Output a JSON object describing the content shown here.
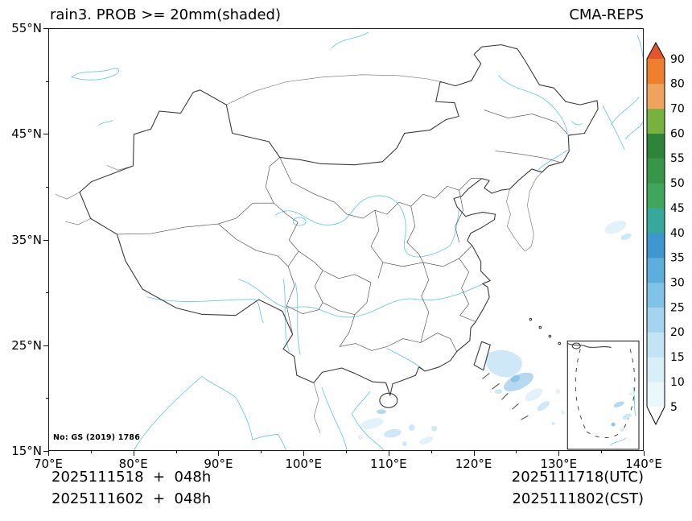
{
  "header": {
    "title": "rain3. PROB >= 20mm(shaded)",
    "model": "CMA-REPS"
  },
  "axes": {
    "x_ticks": [
      "70°E",
      "80°E",
      "90°E",
      "100°E",
      "110°E",
      "120°E",
      "130°E",
      "140°E"
    ],
    "y_ticks": [
      "55°N",
      "45°N",
      "35°N",
      "25°N",
      "15°N"
    ]
  },
  "map": {
    "license": "No: GS (2019) 1786",
    "colors": {
      "border": "#3c3c3c",
      "water": "#6ecde2",
      "frame": "#1a1a1a",
      "shade_levels": [
        "#e2f1fa",
        "#cfe8f7",
        "#b3daf1",
        "#8ec6ea"
      ]
    }
  },
  "footer": {
    "init_utc": "2025111518  +  048h",
    "init_cst": "2025111602  +  048h",
    "valid_utc": "2025111718(UTC)",
    "valid_cst": "2025111802(CST)"
  },
  "colorbar": {
    "levels": [
      5,
      10,
      15,
      20,
      25,
      30,
      35,
      40,
      45,
      50,
      55,
      60,
      70,
      80,
      90
    ],
    "segment_colors": [
      "#eaf7fb",
      "#d9eff8",
      "#c2e4f4",
      "#a3d5ee",
      "#7fc3e6",
      "#5caedc",
      "#3f97cf",
      "#37a89c",
      "#3fa65c",
      "#389648",
      "#2e8539",
      "#77b13e",
      "#f0a35c",
      "#ee7f2e"
    ],
    "under_color": "#ffffff",
    "over_color": "#e2562a"
  },
  "chart_data": {
    "type": "heatmap",
    "title": "rain3. PROB >= 20mm(shaded)",
    "model": "CMA-REPS",
    "projection": "lat-lon map of China with South China Sea inset",
    "x_axis": {
      "ticks": [
        "70°E",
        "80°E",
        "90°E",
        "100°E",
        "110°E",
        "120°E",
        "130°E",
        "140°E"
      ],
      "range_deg": [
        70,
        140
      ]
    },
    "y_axis": {
      "ticks": [
        "15°N",
        "25°N",
        "35°N",
        "45°N",
        "55°N"
      ],
      "range_deg": [
        15,
        55
      ]
    },
    "colorbar": {
      "levels": [
        5,
        10,
        15,
        20,
        25,
        30,
        35,
        40,
        45,
        50,
        55,
        60,
        70,
        80,
        90
      ],
      "orientation": "vertical",
      "extend": "both",
      "position": "right"
    },
    "grid": false,
    "shaded_features": [
      {
        "lon": 123.2,
        "lat": 21.3,
        "max_prob": 15,
        "note": "ocean southeast of Taiwan"
      },
      {
        "lon": 125.0,
        "lat": 20.2,
        "max_prob": 10
      },
      {
        "lon": 127.5,
        "lat": 19.0,
        "max_prob": 5
      },
      {
        "lon": 121.8,
        "lat": 18.2,
        "max_prob": 5
      },
      {
        "lon": 110.6,
        "lat": 16.4,
        "max_prob": 10,
        "note": "south of Hainan"
      },
      {
        "lon": 113.0,
        "lat": 15.4,
        "max_prob": 5
      },
      {
        "lon": 117.2,
        "lat": 15.6,
        "max_prob": 5
      },
      {
        "lon": 136.5,
        "lat": 36.2,
        "max_prob": 5,
        "note": "faint patch far eastern ocean"
      },
      {
        "region": "South China Sea inset",
        "max_prob": 10,
        "note": "scattered light-blue specks"
      }
    ]
  }
}
